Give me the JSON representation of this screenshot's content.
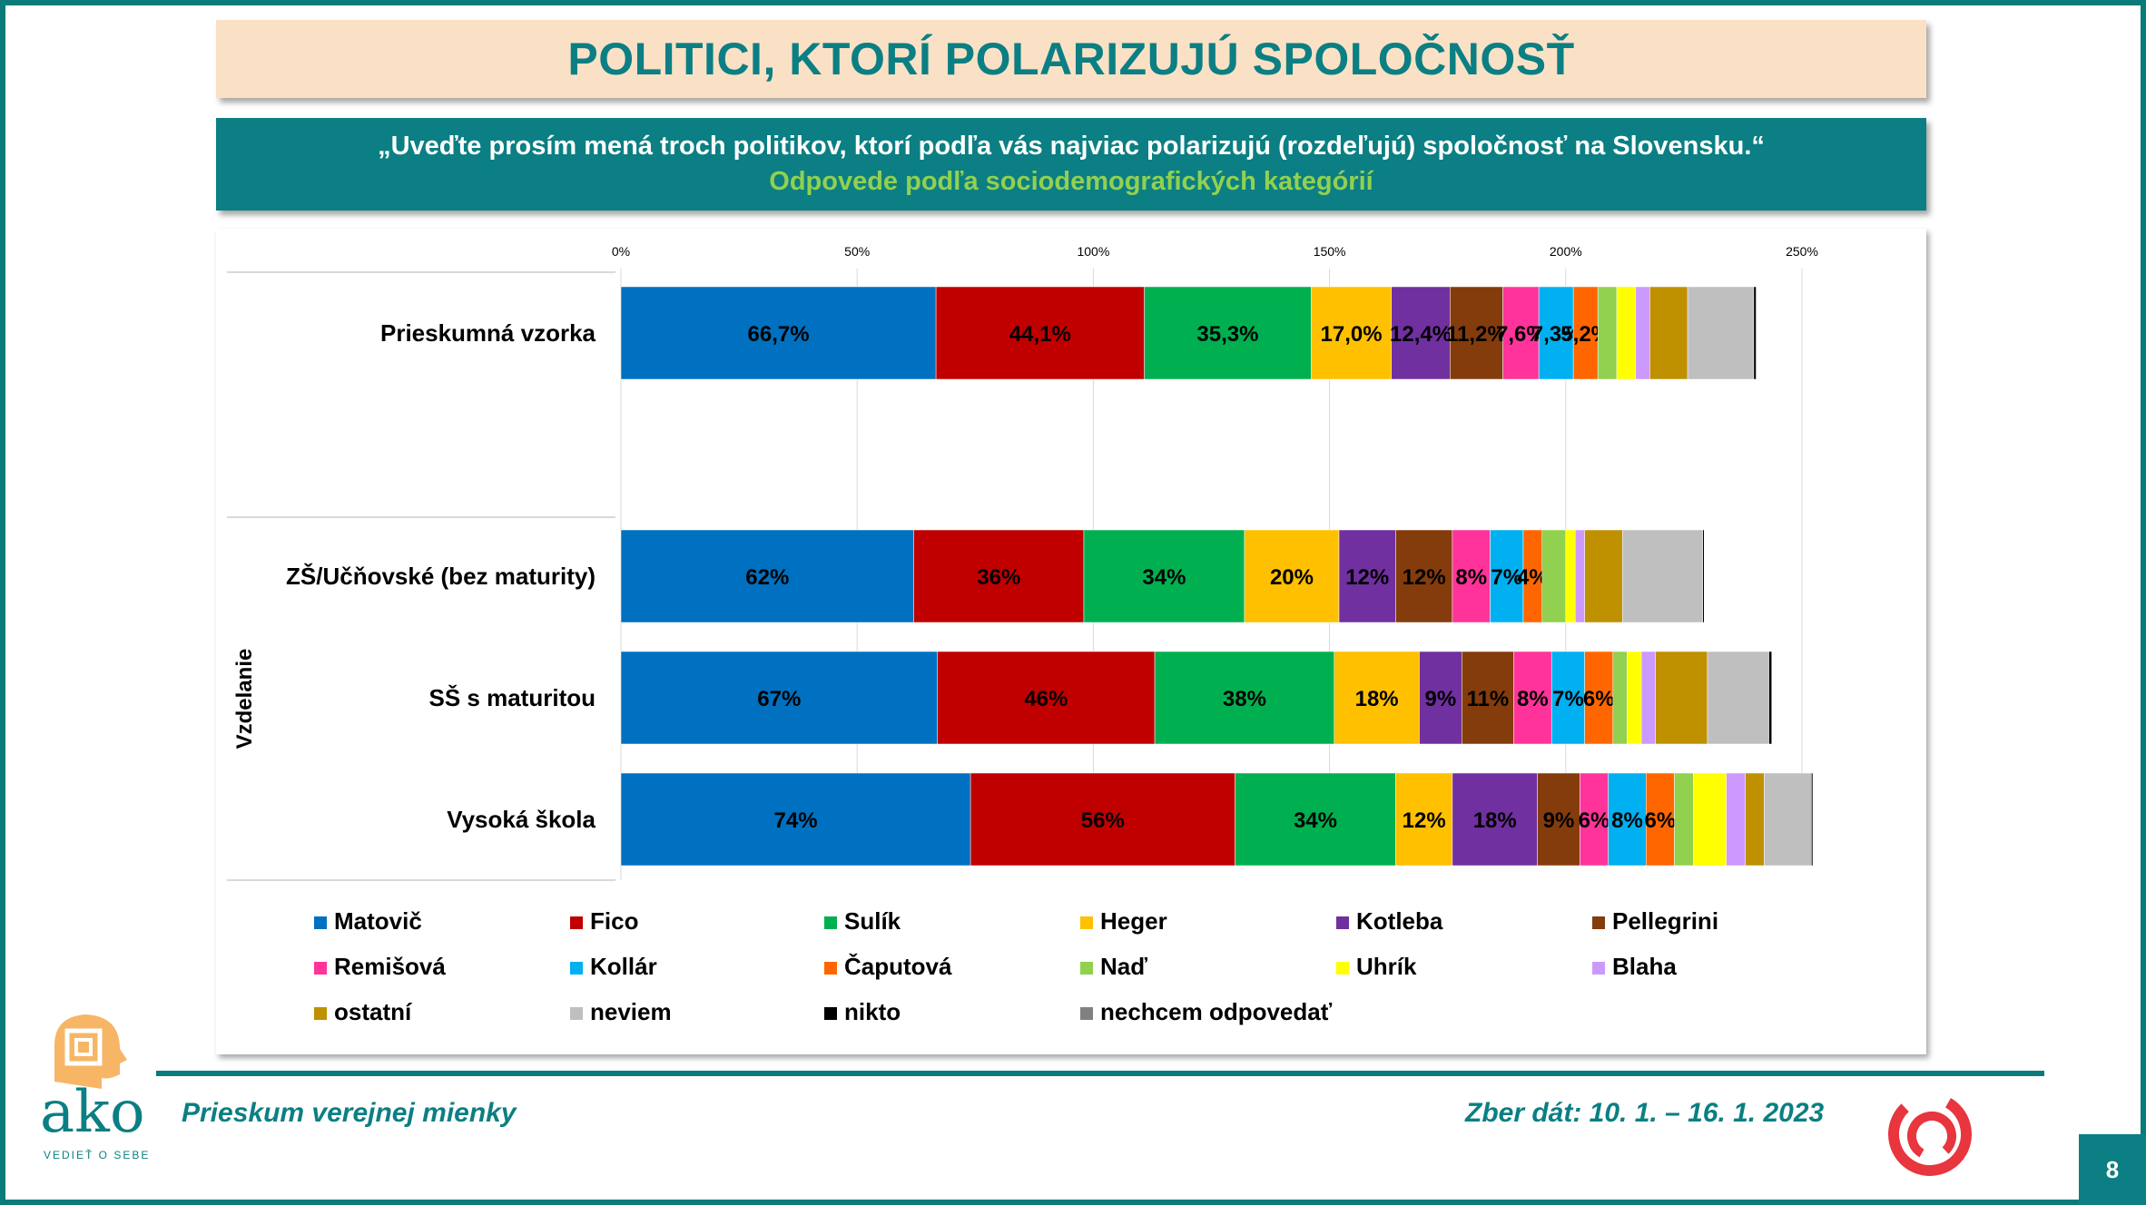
{
  "header": {
    "title": "POLITICI, KTORÍ POLARIZUJÚ SPOLOČNOSŤ",
    "question": "„Uveďte prosím mená troch politikov, ktorí podľa vás najviac polarizujú (rozdeľujú) spoločnosť na Slovensku.“",
    "subtitle": "Odpovede podľa sociodemografických kategórií"
  },
  "footer": {
    "left": "Prieskum verejnej mienky",
    "right": "Zber dát: 10. 1. – 16. 1. 2023",
    "page": "8",
    "logo_text": "ako",
    "logo_tagline": "VEDIEŤ O SEBE"
  },
  "chart_data": {
    "type": "bar",
    "orientation": "horizontal",
    "stacked": true,
    "xlim": [
      0,
      250
    ],
    "x_ticks": [
      "0%",
      "50%",
      "100%",
      "150%",
      "200%",
      "250%"
    ],
    "group_label": "Vzdelanie",
    "categories": [
      "Prieskumná vzorka",
      "ZŠ/Učňovské (bez maturity)",
      "SŠ s maturitou",
      "Vysoká škola"
    ],
    "legend_position": "bottom",
    "gridlines": true,
    "series": [
      {
        "name": "Matovič",
        "color": "#0070c0",
        "values": [
          66.7,
          62,
          67,
          74
        ],
        "labels": [
          "66,7%",
          "62%",
          "67%",
          "74%"
        ]
      },
      {
        "name": "Fico",
        "color": "#c00000",
        "values": [
          44.1,
          36,
          46,
          56
        ],
        "labels": [
          "44,1%",
          "36%",
          "46%",
          "56%"
        ]
      },
      {
        "name": "Sulík",
        "color": "#00b050",
        "values": [
          35.3,
          34,
          38,
          34
        ],
        "labels": [
          "35,3%",
          "34%",
          "38%",
          "34%"
        ]
      },
      {
        "name": "Heger",
        "color": "#ffc000",
        "values": [
          17.0,
          20,
          18,
          12
        ],
        "labels": [
          "17,0%",
          "20%",
          "18%",
          "12%"
        ]
      },
      {
        "name": "Kotleba",
        "color": "#7030a0",
        "values": [
          12.4,
          12,
          9,
          18
        ],
        "labels": [
          "12,4%",
          "12%",
          "9%",
          "18%"
        ]
      },
      {
        "name": "Pellegrini",
        "color": "#843c0c",
        "values": [
          11.2,
          12,
          11,
          9
        ],
        "labels": [
          "11,2%",
          "12%",
          "11%",
          "9%"
        ]
      },
      {
        "name": "Remišová",
        "color": "#ff3399",
        "values": [
          7.6,
          8,
          8,
          6
        ],
        "labels": [
          "7,6%",
          "8%",
          "8%",
          "6%"
        ]
      },
      {
        "name": "Kollár",
        "color": "#00b0f0",
        "values": [
          7.3,
          7,
          7,
          8
        ],
        "labels": [
          "7,3%",
          "7%",
          "7%",
          "8%"
        ]
      },
      {
        "name": "Čaputová",
        "color": "#ff6600",
        "values": [
          5.2,
          4,
          6,
          6
        ],
        "labels": [
          "5,2%",
          "4%",
          "6%",
          "6%"
        ]
      },
      {
        "name": "Naď",
        "color": "#92d050",
        "values": [
          4,
          5,
          3,
          4
        ],
        "labels": [
          "",
          "",
          "",
          ""
        ]
      },
      {
        "name": "Uhrík",
        "color": "#ffff00",
        "values": [
          4,
          2,
          3,
          7
        ],
        "labels": [
          "",
          "",
          "",
          ""
        ]
      },
      {
        "name": "Blaha",
        "color": "#cc99ff",
        "values": [
          3,
          2,
          3,
          4
        ],
        "labels": [
          "",
          "",
          "",
          ""
        ]
      },
      {
        "name": "ostatní",
        "color": "#bf9000",
        "values": [
          8,
          8,
          11,
          4
        ],
        "labels": [
          "",
          "",
          "",
          ""
        ]
      },
      {
        "name": "neviem",
        "color": "#bfbfbf",
        "values": [
          14,
          17,
          13,
          10
        ],
        "labels": [
          "",
          "",
          "",
          ""
        ]
      },
      {
        "name": "nikto",
        "color": "#000000",
        "values": [
          0.5,
          0.3,
          0.6,
          0.3
        ],
        "labels": [
          "",
          "",
          "",
          ""
        ]
      },
      {
        "name": "nechcem odpovedať",
        "color": "#808080",
        "values": [
          0,
          0,
          0,
          0
        ],
        "labels": [
          "",
          "",
          "",
          ""
        ]
      }
    ]
  }
}
